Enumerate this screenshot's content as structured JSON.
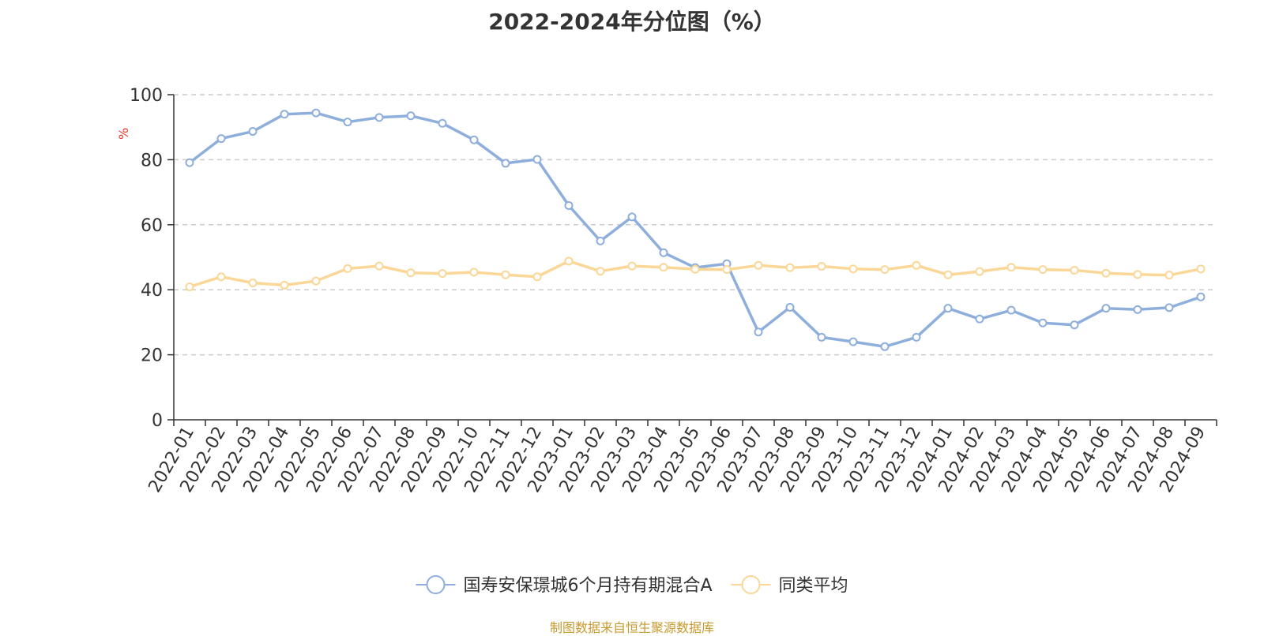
{
  "chart_data": {
    "type": "line",
    "title": "2022-2024年分位图（%）",
    "ylabel": "%",
    "ylim": [
      0,
      100
    ],
    "yticks": [
      0,
      20,
      40,
      60,
      80,
      100
    ],
    "grid": true,
    "legend_position": "bottom",
    "categories": [
      "2022-01",
      "2022-02",
      "2022-03",
      "2022-04",
      "2022-05",
      "2022-06",
      "2022-07",
      "2022-08",
      "2022-09",
      "2022-10",
      "2022-11",
      "2022-12",
      "2023-01",
      "2023-02",
      "2023-03",
      "2023-04",
      "2023-05",
      "2023-06",
      "2023-07",
      "2023-08",
      "2023-09",
      "2023-10",
      "2023-11",
      "2023-12",
      "2024-01",
      "2024-02",
      "2024-03",
      "2024-04",
      "2024-05",
      "2024-06",
      "2024-07",
      "2024-08",
      "2024-09"
    ],
    "series": [
      {
        "name": "国寿安保璟城6个月持有期混合A",
        "color": "#8eaedb",
        "values": [
          79.1,
          86.5,
          88.7,
          94.0,
          94.4,
          91.6,
          93.0,
          93.5,
          91.2,
          86.1,
          78.9,
          80.1,
          65.9,
          55.0,
          62.4,
          51.4,
          46.8,
          48.0,
          27.0,
          34.6,
          25.4,
          24.0,
          22.5,
          25.4,
          34.3,
          31.0,
          33.7,
          29.8,
          29.2,
          34.3,
          33.9,
          34.5,
          37.8
        ]
      },
      {
        "name": "同类平均",
        "color": "#fad797",
        "values": [
          40.9,
          44.0,
          42.1,
          41.4,
          42.7,
          46.5,
          47.3,
          45.2,
          45.0,
          45.4,
          44.6,
          44.0,
          48.8,
          45.7,
          47.3,
          46.9,
          46.3,
          46.2,
          47.5,
          46.8,
          47.2,
          46.4,
          46.2,
          47.5,
          44.6,
          45.6,
          46.9,
          46.2,
          46.0,
          45.1,
          44.7,
          44.5,
          46.4
        ]
      }
    ]
  },
  "footer": {
    "source": "制图数据来自恒生聚源数据库"
  }
}
